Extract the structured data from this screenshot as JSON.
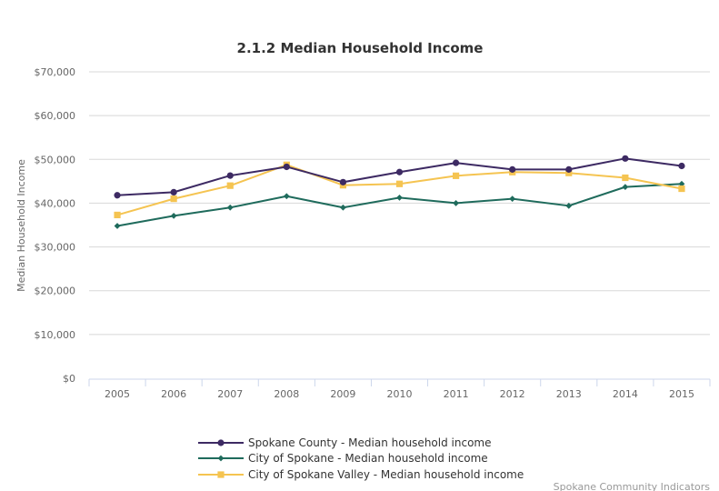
{
  "chart_data": {
    "type": "line",
    "title": "2.1.2 Median Household Income",
    "xlabel": "",
    "ylabel": "Median Household Income",
    "ylim": [
      0,
      70000
    ],
    "yticks": [
      0,
      10000,
      20000,
      30000,
      40000,
      50000,
      60000,
      70000
    ],
    "ytick_labels": [
      "$0",
      "$10,000",
      "$20,000",
      "$30,000",
      "$40,000",
      "$50,000",
      "$60,000",
      "$70,000"
    ],
    "categories": [
      "2005",
      "2006",
      "2007",
      "2008",
      "2009",
      "2010",
      "2011",
      "2012",
      "2013",
      "2014",
      "2015"
    ],
    "grid": true,
    "legend_position": "bottom",
    "series": [
      {
        "name": "Spokane County - Median household income",
        "color": "#3d2a63",
        "marker": "circle",
        "values": [
          41800,
          42500,
          46300,
          48300,
          44800,
          47100,
          49200,
          47700,
          47700,
          50200,
          48500
        ]
      },
      {
        "name": "City of Spokane - Median household income",
        "color": "#1f6b5c",
        "marker": "diamond",
        "values": [
          34800,
          37100,
          39000,
          41600,
          39000,
          41250,
          40000,
          41000,
          39400,
          43700,
          44400
        ]
      },
      {
        "name": "City of Spokane Valley - Median household income",
        "color": "#f5c451",
        "marker": "square",
        "values": [
          37300,
          41000,
          44000,
          48750,
          44100,
          44400,
          46250,
          47100,
          46900,
          45800,
          43300
        ]
      }
    ],
    "credit": "Spokane Community Indicators"
  }
}
